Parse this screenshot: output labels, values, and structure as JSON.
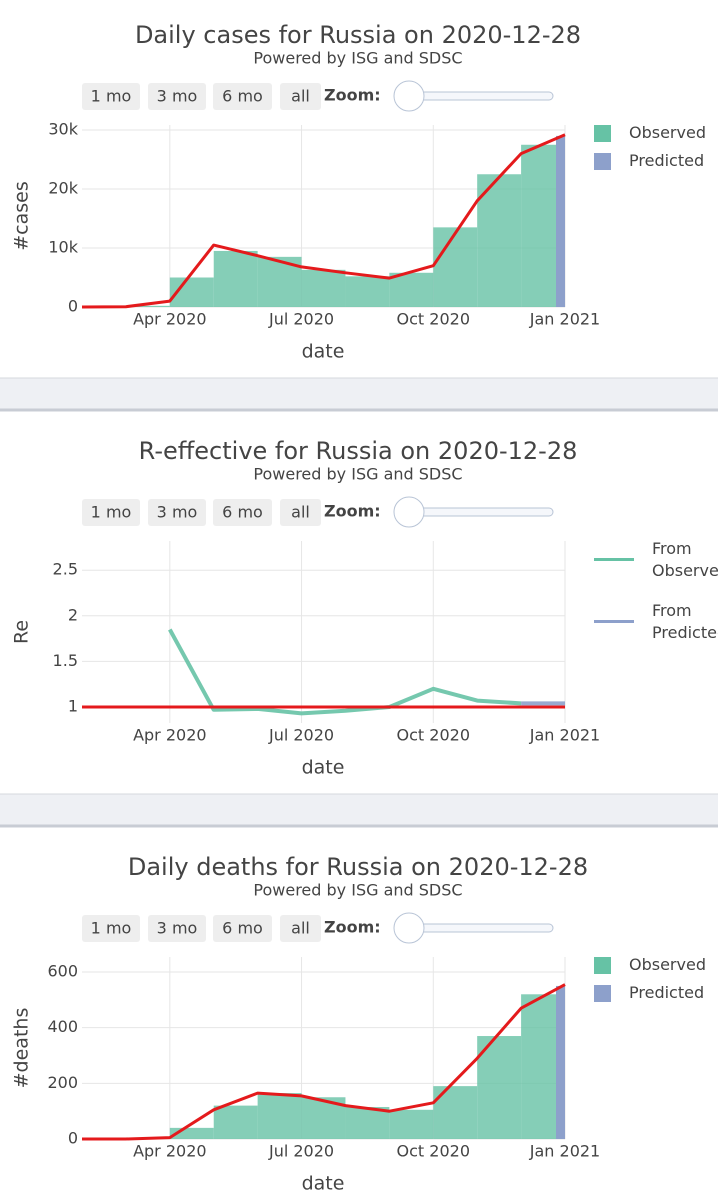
{
  "chart_data": [
    {
      "type": "bar",
      "title": "Daily cases for Russia on 2020-12-28",
      "subtitle": "Powered by ISG and SDSC",
      "range_buttons": [
        "1 mo",
        "3 mo",
        "6 mo",
        "all"
      ],
      "zoom_label": "Zoom:",
      "x_label": "date",
      "y_label": "#cases",
      "x": [
        "2020-02",
        "2020-03",
        "2020-04",
        "2020-05",
        "2020-06",
        "2020-07",
        "2020-08",
        "2020-09",
        "2020-10",
        "2020-11",
        "2020-12",
        "2021-01"
      ],
      "xlim": [
        "2020-02",
        "2021-01"
      ],
      "xticks": [
        {
          "value": "2020-04",
          "label": "Apr 2020"
        },
        {
          "value": "2020-07",
          "label": "Jul 2020"
        },
        {
          "value": "2020-10",
          "label": "Oct 2020"
        },
        {
          "value": "2021-01",
          "label": "Jan 2021"
        }
      ],
      "ylim": [
        0,
        30850
      ],
      "yticks": [
        0,
        {
          "value": 10000,
          "label": "10k"
        },
        {
          "value": 20000,
          "label": "20k"
        },
        {
          "value": 30000,
          "label": "30k"
        }
      ],
      "grid": true,
      "legend": "right",
      "series": [
        {
          "name": "Observed",
          "color": "#66c2a5",
          "values": [
            0,
            200,
            5000,
            9500,
            8500,
            6300,
            5200,
            5800,
            13500,
            22500,
            27500,
            null
          ]
        },
        {
          "name": "Predicted",
          "color": "#8da0cb",
          "values": [
            null,
            null,
            null,
            null,
            null,
            null,
            null,
            null,
            null,
            null,
            null,
            29000
          ]
        }
      ],
      "trend_line": {
        "color": "#e41a1c",
        "values": [
          0,
          50,
          1000,
          10500,
          8700,
          6800,
          5800,
          4900,
          7000,
          18000,
          26000,
          29200
        ]
      }
    },
    {
      "type": "line",
      "title": "R-effective for Russia on 2020-12-28",
      "subtitle": "Powered by ISG and SDSC",
      "range_buttons": [
        "1 mo",
        "3 mo",
        "6 mo",
        "all"
      ],
      "zoom_label": "Zoom:",
      "x_label": "date",
      "y_label": "Re",
      "x": [
        "2020-02",
        "2020-03",
        "2020-04",
        "2020-05",
        "2020-06",
        "2020-07",
        "2020-08",
        "2020-09",
        "2020-10",
        "2020-11",
        "2020-12",
        "2021-01"
      ],
      "xlim": [
        "2020-02",
        "2021-01"
      ],
      "xticks": [
        {
          "value": "2020-04",
          "label": "Apr 2020"
        },
        {
          "value": "2020-07",
          "label": "Jul 2020"
        },
        {
          "value": "2020-10",
          "label": "Oct 2020"
        },
        {
          "value": "2021-01",
          "label": "Jan 2021"
        }
      ],
      "ylim": [
        0.825,
        2.82
      ],
      "yticks": [
        1,
        1.5,
        2,
        2.5
      ],
      "grid": true,
      "legend": "right",
      "series": [
        {
          "name": "From Observed",
          "color": "#66c2a5",
          "values": [
            null,
            null,
            1.85,
            0.97,
            0.98,
            0.93,
            0.96,
            1.0,
            1.2,
            1.07,
            1.04,
            null
          ]
        },
        {
          "name": "From Predicted",
          "color": "#8da0cb",
          "values": [
            null,
            null,
            null,
            null,
            null,
            null,
            null,
            null,
            null,
            null,
            1.04,
            1.04
          ]
        }
      ],
      "reference_line": {
        "value": 1,
        "color": "#e41a1c"
      }
    },
    {
      "type": "bar",
      "title": "Daily deaths for Russia on 2020-12-28",
      "subtitle": "Powered by ISG and SDSC",
      "range_buttons": [
        "1 mo",
        "3 mo",
        "6 mo",
        "all"
      ],
      "zoom_label": "Zoom:",
      "x_label": "date",
      "y_label": "#deaths",
      "x": [
        "2020-02",
        "2020-03",
        "2020-04",
        "2020-05",
        "2020-06",
        "2020-07",
        "2020-08",
        "2020-09",
        "2020-10",
        "2020-11",
        "2020-12",
        "2021-01"
      ],
      "xlim": [
        "2020-02",
        "2021-01"
      ],
      "xticks": [
        {
          "value": "2020-04",
          "label": "Apr 2020"
        },
        {
          "value": "2020-07",
          "label": "Jul 2020"
        },
        {
          "value": "2020-10",
          "label": "Oct 2020"
        },
        {
          "value": "2021-01",
          "label": "Jan 2021"
        }
      ],
      "ylim": [
        0,
        654
      ],
      "yticks": [
        0,
        200,
        400,
        600
      ],
      "grid": true,
      "legend": "right",
      "series": [
        {
          "name": "Observed",
          "color": "#66c2a5",
          "values": [
            0,
            1,
            40,
            120,
            165,
            150,
            115,
            105,
            190,
            370,
            520,
            null
          ]
        },
        {
          "name": "Predicted",
          "color": "#8da0cb",
          "values": [
            null,
            null,
            null,
            null,
            null,
            null,
            null,
            null,
            null,
            null,
            null,
            550
          ]
        }
      ],
      "trend_line": {
        "color": "#e41a1c",
        "values": [
          0,
          0,
          5,
          105,
          165,
          155,
          120,
          100,
          130,
          290,
          470,
          555
        ]
      }
    }
  ]
}
